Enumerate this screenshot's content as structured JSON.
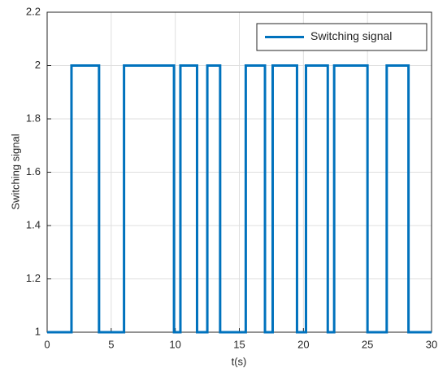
{
  "chart_data": {
    "type": "line",
    "xlabel": "t(s)",
    "ylabel": "Switching signal",
    "x": [
      0,
      1.9,
      1.9,
      4.05,
      4.05,
      6,
      6,
      9.9,
      9.9,
      10.4,
      10.4,
      11.7,
      11.7,
      12.5,
      12.5,
      13.5,
      13.5,
      15.5,
      15.5,
      17,
      17,
      17.6,
      17.6,
      19.5,
      19.5,
      20.2,
      20.2,
      21.9,
      21.9,
      22.4,
      22.4,
      25,
      25,
      26.5,
      26.5,
      28.2,
      28.2,
      30
    ],
    "series": [
      {
        "name": "Switching signal",
        "color": "#0072bd",
        "values": [
          1,
          1,
          2,
          2,
          1,
          1,
          2,
          2,
          1,
          1,
          2,
          2,
          1,
          1,
          2,
          2,
          1,
          1,
          2,
          2,
          1,
          1,
          2,
          2,
          1,
          1,
          2,
          2,
          1,
          1,
          2,
          2,
          1,
          1,
          2,
          2,
          1,
          1
        ]
      }
    ],
    "xlim": [
      0,
      30
    ],
    "xticks": [
      0,
      5,
      10,
      15,
      20,
      25,
      30
    ],
    "ylim": [
      1,
      2.2
    ],
    "yticks": [
      1,
      1.2,
      1.4,
      1.6,
      1.8,
      2,
      2.2
    ],
    "grid": true,
    "legend": "upper right"
  }
}
